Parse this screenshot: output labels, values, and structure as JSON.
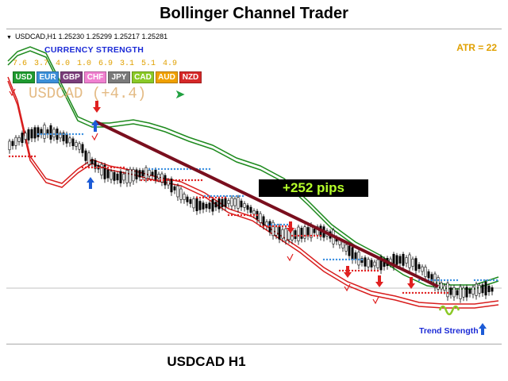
{
  "title": "Bollinger Channel Trader",
  "symbol_line": "USDCAD,H1  1.25230 1.25299 1.25217 1.25281",
  "currency_strength": {
    "title": "CURRENCY STRENGTH",
    "values": [
      "7.6",
      "3.7",
      "4.0",
      "1.0",
      "6.9",
      "3.1",
      "5.1",
      "4.9"
    ],
    "currencies": [
      {
        "code": "USD",
        "color": "#1f9a2f"
      },
      {
        "code": "EUR",
        "color": "#3b8fd8"
      },
      {
        "code": "GBP",
        "color": "#7a3d7a"
      },
      {
        "code": "CHF",
        "color": "#f080d0"
      },
      {
        "code": "JPY",
        "color": "#7a7a7a"
      },
      {
        "code": "CAD",
        "color": "#8ac926"
      },
      {
        "code": "AUD",
        "color": "#f0a000"
      },
      {
        "code": "NZD",
        "color": "#d62828"
      }
    ]
  },
  "pair_label": "USDCAD (+4.4)",
  "pair_arrow": "➤",
  "atr": "ATR = 22",
  "trade_result": "+252 pips",
  "trend_strength_label": "Trend Strength",
  "footer": "USDCAD H1",
  "colors": {
    "upper_band": "#1e8a1e",
    "lower_band": "#d81e1e",
    "trend_line": "#7a0f1e",
    "dots_upper": "#3a8fe0",
    "dots_lower": "#e02020",
    "buy_arrow": "#1c5bd6",
    "sell_arrow": "#e02020"
  }
}
